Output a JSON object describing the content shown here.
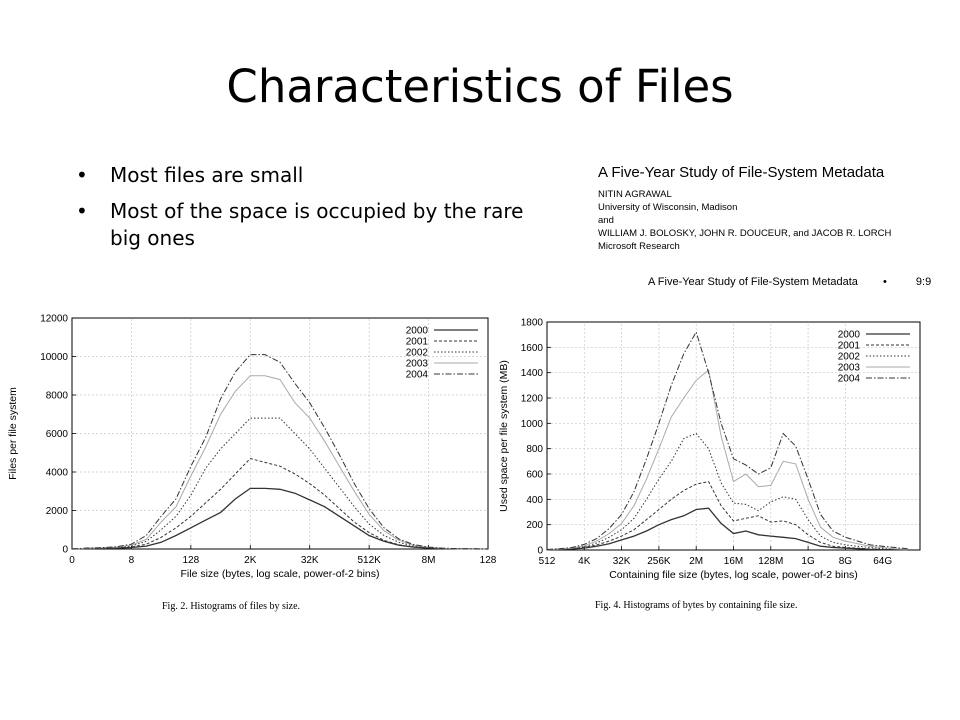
{
  "slide": {
    "title": "Characteristics of Files",
    "bullets": [
      "Most files are small",
      "Most of the space is occupied by the rare big ones"
    ]
  },
  "paper": {
    "title": "A Five-Year Study of File-System Metadata",
    "lines": [
      "NITIN AGRAWAL",
      "University of Wisconsin, Madison",
      "and",
      "WILLIAM J. BOLOSKY, JOHN R. DOUCEUR, and JACOB R. LORCH",
      "Microsoft Research"
    ],
    "running_header": "A Five-Year Study of File-System Metadata",
    "running_sep": "•",
    "page": "9:9"
  },
  "colors": {
    "background": "#ffffff",
    "text": "#000000",
    "plot_lines": "#333333",
    "grid": "#c8c8c8"
  },
  "chart_data": [
    {
      "type": "line",
      "caption": "Fig. 2.   Histograms of files by size.",
      "xlabel": "File size (bytes, log scale, power-of-2 bins)",
      "ylabel": "Files per file system",
      "x_scale": "log2",
      "xtick_labels": [
        "0",
        "8",
        "128",
        "2K",
        "32K",
        "512K",
        "8M",
        "128"
      ],
      "ytick_labels": [
        "0",
        "2000",
        "4000",
        "6000",
        "8000",
        "10000",
        "12000"
      ],
      "ylim": [
        0,
        12000
      ],
      "grid": true,
      "legend_position": "top-right",
      "x": [
        0,
        1,
        2,
        3,
        4,
        5,
        6,
        7,
        8,
        9,
        10,
        11,
        12,
        13,
        14,
        15,
        16,
        17,
        18,
        19,
        20,
        21,
        22,
        23,
        24,
        25,
        26,
        27,
        28
      ],
      "series": [
        {
          "name": "2000",
          "values": [
            0,
            20,
            30,
            40,
            80,
            150,
            350,
            700,
            1100,
            1500,
            1900,
            2600,
            3150,
            3150,
            3100,
            2900,
            2550,
            2200,
            1700,
            1200,
            700,
            400,
            200,
            100,
            50,
            20,
            10,
            5,
            0
          ]
        },
        {
          "name": "2001",
          "values": [
            0,
            20,
            30,
            50,
            100,
            250,
            600,
            1100,
            1700,
            2400,
            3100,
            3900,
            4700,
            4500,
            4300,
            3900,
            3400,
            2800,
            2100,
            1400,
            850,
            450,
            220,
            100,
            50,
            20,
            10,
            5,
            0
          ]
        },
        {
          "name": "2002",
          "values": [
            0,
            30,
            50,
            80,
            150,
            400,
            1000,
            1700,
            2800,
            4200,
            5200,
            6000,
            6800,
            6800,
            6800,
            6000,
            5200,
            4200,
            3200,
            2200,
            1300,
            700,
            350,
            150,
            70,
            30,
            10,
            5,
            0
          ]
        },
        {
          "name": "2003",
          "values": [
            0,
            40,
            60,
            100,
            200,
            500,
            1400,
            2200,
            3800,
            5300,
            7000,
            8200,
            9000,
            9000,
            8800,
            7600,
            6800,
            5600,
            4300,
            3000,
            1800,
            950,
            450,
            200,
            90,
            40,
            15,
            5,
            0
          ]
        },
        {
          "name": "2004",
          "values": [
            0,
            50,
            70,
            120,
            250,
            700,
            1700,
            2600,
            4300,
            5800,
            7800,
            9200,
            10100,
            10100,
            9700,
            8600,
            7600,
            6300,
            4900,
            3400,
            2100,
            1100,
            520,
            230,
            100,
            40,
            15,
            5,
            0
          ]
        }
      ]
    },
    {
      "type": "line",
      "caption": "Fig. 4.   Histograms of bytes by containing file size.",
      "xlabel": "Containing file size (bytes, log scale, power-of-2 bins)",
      "ylabel": "Used space per file system (MB)",
      "x_scale": "log2",
      "xtick_labels": [
        "512",
        "4K",
        "32K",
        "256K",
        "2M",
        "16M",
        "128M",
        "1G",
        "8G",
        "64G"
      ],
      "ytick_labels": [
        "0",
        "200",
        "400",
        "600",
        "800",
        "1000",
        "1200",
        "1400",
        "1600",
        "1800"
      ],
      "ylim": [
        0,
        1800
      ],
      "grid": true,
      "legend_position": "top-right",
      "x": [
        9,
        10,
        11,
        12,
        13,
        14,
        15,
        16,
        17,
        18,
        19,
        20,
        21,
        22,
        23,
        24,
        25,
        26,
        27,
        28,
        29,
        30,
        31,
        32,
        33,
        34,
        35,
        36,
        37,
        38
      ],
      "series": [
        {
          "name": "2000",
          "values": [
            2,
            4,
            8,
            15,
            30,
            50,
            80,
            110,
            150,
            200,
            240,
            270,
            320,
            330,
            210,
            130,
            150,
            120,
            110,
            100,
            90,
            60,
            30,
            20,
            15,
            10,
            5,
            3,
            2,
            1
          ]
        },
        {
          "name": "2001",
          "values": [
            2,
            5,
            10,
            20,
            40,
            70,
            110,
            160,
            240,
            320,
            400,
            470,
            520,
            540,
            350,
            230,
            250,
            270,
            220,
            230,
            200,
            120,
            60,
            30,
            20,
            15,
            8,
            5,
            3,
            2
          ]
        },
        {
          "name": "2002",
          "values": [
            3,
            6,
            12,
            25,
            55,
            100,
            160,
            250,
            400,
            560,
            700,
            880,
            920,
            800,
            530,
            370,
            360,
            310,
            380,
            420,
            400,
            240,
            110,
            60,
            40,
            30,
            20,
            10,
            5,
            3
          ]
        },
        {
          "name": "2003",
          "values": [
            3,
            8,
            15,
            35,
            70,
            130,
            210,
            350,
            560,
            800,
            1050,
            1200,
            1340,
            1420,
            900,
            540,
            600,
            500,
            510,
            700,
            680,
            400,
            180,
            100,
            70,
            50,
            30,
            20,
            10,
            5
          ]
        },
        {
          "name": "2004",
          "values": [
            4,
            10,
            20,
            45,
            90,
            170,
            280,
            460,
            720,
            1000,
            1300,
            1550,
            1720,
            1400,
            1000,
            720,
            670,
            600,
            650,
            920,
            820,
            560,
            280,
            150,
            100,
            70,
            40,
            30,
            20,
            10
          ]
        }
      ]
    }
  ]
}
